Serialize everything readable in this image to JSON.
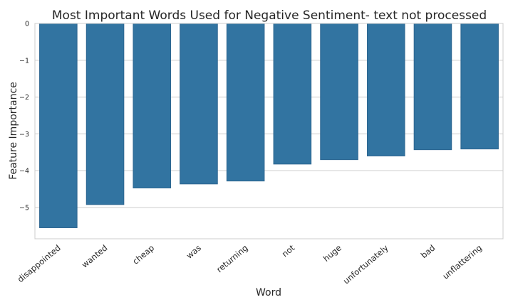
{
  "chart_data": {
    "type": "bar",
    "title": "Most Important Words Used for Negative Sentiment- text not processed",
    "xlabel": "Word",
    "ylabel": "Feature Importance",
    "categories": [
      "disappointed",
      "wanted",
      "cheap",
      "was",
      "returning",
      "not",
      "huge",
      "unfortunately",
      "bad",
      "unflattering"
    ],
    "values": [
      -5.55,
      -4.92,
      -4.47,
      -4.36,
      -4.28,
      -3.82,
      -3.7,
      -3.6,
      -3.43,
      -3.41
    ],
    "ylim": [
      -5.85,
      0
    ],
    "yticks": [
      0,
      -1,
      -2,
      -3,
      -4,
      -5
    ],
    "ytick_labels": [
      "0",
      "−1",
      "−2",
      "−3",
      "−4",
      "−5"
    ],
    "grid": true,
    "bar_color": "#3274a1",
    "bar_edge_color": "#2c6590"
  }
}
